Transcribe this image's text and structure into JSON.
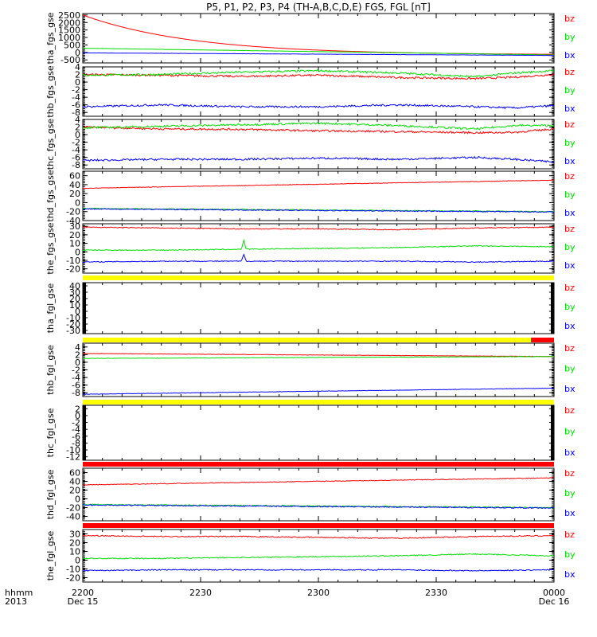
{
  "title": "P5, P1, P2, P3, P4 (TH-A,B,C,D,E) FGS, FGL [nT]",
  "colors": {
    "bz": "#ff0000",
    "by": "#00dd00",
    "bx": "#0000ff",
    "bar_yellow": "#ffff00",
    "bar_red": "#ff0000",
    "axis": "#000000"
  },
  "x_axis": {
    "ticks": [
      {
        "t": 0,
        "label": "2200",
        "sub": "Dec 15"
      },
      {
        "t": 30,
        "label": "2230",
        "sub": ""
      },
      {
        "t": 60,
        "label": "2300",
        "sub": ""
      },
      {
        "t": 90,
        "label": "2330",
        "sub": ""
      },
      {
        "t": 120,
        "label": "0000",
        "sub": "Dec 16"
      }
    ],
    "label": "hhmm",
    "year": "2013"
  },
  "chart_data": [
    {
      "type": "line",
      "ylabel": "tha_fgs_gse",
      "ylim": [
        -700,
        2600
      ],
      "yticks": [
        -500,
        0,
        500,
        1000,
        1500,
        2000,
        2500
      ],
      "series": [
        {
          "name": "bz",
          "kind": "exp",
          "start": 2500,
          "end": -160,
          "tau": 28
        },
        {
          "name": "by",
          "kind": "linear",
          "start": 280,
          "end": -170,
          "noise": 6
        },
        {
          "name": "bx",
          "kind": "linear",
          "start": -30,
          "end": -200,
          "noise": 6
        }
      ]
    },
    {
      "type": "line",
      "ylabel": "thb_fgs_gse",
      "ylim": [
        -9,
        4
      ],
      "yticks": [
        -8,
        -6,
        -4,
        -2,
        0,
        2,
        4
      ],
      "series": [
        {
          "name": "bz",
          "kind": "wave",
          "points": [
            [
              0,
              2.0
            ],
            [
              20,
              1.8
            ],
            [
              40,
              1.5
            ],
            [
              60,
              1.8
            ],
            [
              80,
              1.2
            ],
            [
              100,
              0.9
            ],
            [
              110,
              1.3
            ],
            [
              120,
              2.0
            ]
          ],
          "noise": 0.25
        },
        {
          "name": "by",
          "kind": "wave",
          "points": [
            [
              0,
              1.8
            ],
            [
              20,
              2.0
            ],
            [
              40,
              2.6
            ],
            [
              60,
              3.0
            ],
            [
              80,
              2.4
            ],
            [
              100,
              1.4
            ],
            [
              110,
              2.4
            ],
            [
              120,
              3.0
            ]
          ],
          "noise": 0.25
        },
        {
          "name": "bx",
          "kind": "wave",
          "points": [
            [
              0,
              -6.5
            ],
            [
              20,
              -6.0
            ],
            [
              40,
              -6.5
            ],
            [
              60,
              -6.5
            ],
            [
              80,
              -6.0
            ],
            [
              100,
              -6.5
            ],
            [
              110,
              -6.8
            ],
            [
              120,
              -6.2
            ]
          ],
          "noise": 0.25
        }
      ]
    },
    {
      "type": "line",
      "ylabel": "thc_fgs_gse",
      "ylim": [
        -9,
        4
      ],
      "yticks": [
        -8,
        -6,
        -4,
        -2,
        0,
        2,
        4
      ],
      "series": [
        {
          "name": "bz",
          "kind": "wave",
          "points": [
            [
              0,
              2.0
            ],
            [
              20,
              1.5
            ],
            [
              40,
              1.4
            ],
            [
              60,
              1.0
            ],
            [
              80,
              0.8
            ],
            [
              100,
              0.5
            ],
            [
              110,
              0.6
            ],
            [
              120,
              1.5
            ]
          ],
          "noise": 0.25
        },
        {
          "name": "by",
          "kind": "wave",
          "points": [
            [
              0,
              1.8
            ],
            [
              20,
              2.2
            ],
            [
              40,
              2.6
            ],
            [
              60,
              3.0
            ],
            [
              80,
              2.4
            ],
            [
              100,
              1.5
            ],
            [
              110,
              2.4
            ],
            [
              120,
              2.4
            ]
          ],
          "noise": 0.25
        },
        {
          "name": "bx",
          "kind": "wave",
          "points": [
            [
              0,
              -6.8
            ],
            [
              20,
              -6.5
            ],
            [
              40,
              -6.5
            ],
            [
              60,
              -6.2
            ],
            [
              80,
              -6.5
            ],
            [
              100,
              -6.0
            ],
            [
              110,
              -6.5
            ],
            [
              120,
              -7.2
            ]
          ],
          "noise": 0.25
        }
      ]
    },
    {
      "type": "line",
      "ylabel": "thd_fgs_gse",
      "ylim": [
        -40,
        70
      ],
      "yticks": [
        -40,
        -20,
        0,
        20,
        40,
        60
      ],
      "series": [
        {
          "name": "bz",
          "kind": "linear",
          "start": 32,
          "end": 50,
          "noise": 0.6
        },
        {
          "name": "by",
          "kind": "linear",
          "start": -13,
          "end": -20,
          "noise": 1.0
        },
        {
          "name": "bx",
          "kind": "linear",
          "start": -14,
          "end": -21,
          "noise": 1.0
        }
      ]
    },
    {
      "type": "line",
      "ylabel": "the_fgs_gse",
      "ylim": [
        -25,
        33
      ],
      "yticks": [
        -20,
        -10,
        0,
        10,
        20,
        30
      ],
      "series": [
        {
          "name": "bz",
          "kind": "wave",
          "points": [
            [
              0,
              29
            ],
            [
              20,
              28
            ],
            [
              40,
              27
            ],
            [
              60,
              27
            ],
            [
              80,
              26
            ],
            [
              100,
              28
            ],
            [
              120,
              29
            ]
          ],
          "noise": 0.5
        },
        {
          "name": "by",
          "kind": "wave",
          "points": [
            [
              0,
              2
            ],
            [
              20,
              2
            ],
            [
              40,
              3
            ],
            [
              60,
              4
            ],
            [
              80,
              5
            ],
            [
              100,
              7
            ],
            [
              120,
              6
            ]
          ],
          "noise": 0.5,
          "spike": {
            "t": 41,
            "h": 10
          }
        },
        {
          "name": "bx",
          "kind": "wave",
          "points": [
            [
              0,
              -12
            ],
            [
              20,
              -11
            ],
            [
              40,
              -11
            ],
            [
              60,
              -11
            ],
            [
              80,
              -11
            ],
            [
              100,
              -12
            ],
            [
              120,
              -11
            ]
          ],
          "noise": 0.5,
          "spike": {
            "t": 41,
            "h": 8
          }
        }
      ]
    },
    {
      "type": "line",
      "ylabel": "tha_fgl_gse",
      "ylim": [
        -35,
        45
      ],
      "yticks": [
        -30,
        -20,
        -10,
        0,
        10,
        20,
        30,
        40
      ],
      "series": []
    },
    {
      "type": "line",
      "ylabel": "thb_fgl_gse",
      "ylim": [
        -9,
        5
      ],
      "yticks": [
        -8,
        -6,
        -4,
        -2,
        0,
        2,
        4
      ],
      "series": [
        {
          "name": "bz",
          "kind": "linear",
          "start": 2.3,
          "end": 1.5,
          "noise": 0.05
        },
        {
          "name": "by",
          "kind": "linear",
          "start": 1.0,
          "end": 1.5,
          "noise": 0.05
        },
        {
          "name": "bx",
          "kind": "linear",
          "start": -8.4,
          "end": -6.8,
          "noise": 0.05
        }
      ]
    },
    {
      "type": "line",
      "ylabel": "thc_fgl_gse",
      "ylim": [
        -13,
        3
      ],
      "yticks": [
        -12,
        -10,
        -8,
        -6,
        -4,
        -2,
        0,
        2
      ],
      "series": []
    },
    {
      "type": "line",
      "ylabel": "thd_fgl_gse",
      "ylim": [
        -50,
        70
      ],
      "yticks": [
        -40,
        -20,
        0,
        20,
        40,
        60
      ],
      "series": [
        {
          "name": "bz",
          "kind": "linear",
          "start": 32,
          "end": 48,
          "noise": 0.8
        },
        {
          "name": "by",
          "kind": "linear",
          "start": -13,
          "end": -20,
          "noise": 1.2
        },
        {
          "name": "bx",
          "kind": "linear",
          "start": -14,
          "end": -21,
          "noise": 1.2
        }
      ]
    },
    {
      "type": "line",
      "ylabel": "the_fgl_gse",
      "ylim": [
        -25,
        35
      ],
      "yticks": [
        -20,
        -10,
        0,
        10,
        20,
        30
      ],
      "series": [
        {
          "name": "bz",
          "kind": "wave",
          "points": [
            [
              0,
              28
            ],
            [
              20,
              27
            ],
            [
              40,
              27
            ],
            [
              60,
              26
            ],
            [
              80,
              25
            ],
            [
              100,
              27
            ],
            [
              120,
              28
            ]
          ],
          "noise": 0.6
        },
        {
          "name": "by",
          "kind": "wave",
          "points": [
            [
              0,
              2
            ],
            [
              20,
              2
            ],
            [
              40,
              3
            ],
            [
              60,
              4
            ],
            [
              80,
              5
            ],
            [
              100,
              7
            ],
            [
              120,
              5
            ]
          ],
          "noise": 0.6
        },
        {
          "name": "bx",
          "kind": "wave",
          "points": [
            [
              0,
              -12
            ],
            [
              20,
              -11
            ],
            [
              40,
              -11
            ],
            [
              60,
              -11
            ],
            [
              80,
              -11
            ],
            [
              100,
              -12
            ],
            [
              120,
              -11
            ]
          ],
          "noise": 0.6
        }
      ]
    }
  ]
}
